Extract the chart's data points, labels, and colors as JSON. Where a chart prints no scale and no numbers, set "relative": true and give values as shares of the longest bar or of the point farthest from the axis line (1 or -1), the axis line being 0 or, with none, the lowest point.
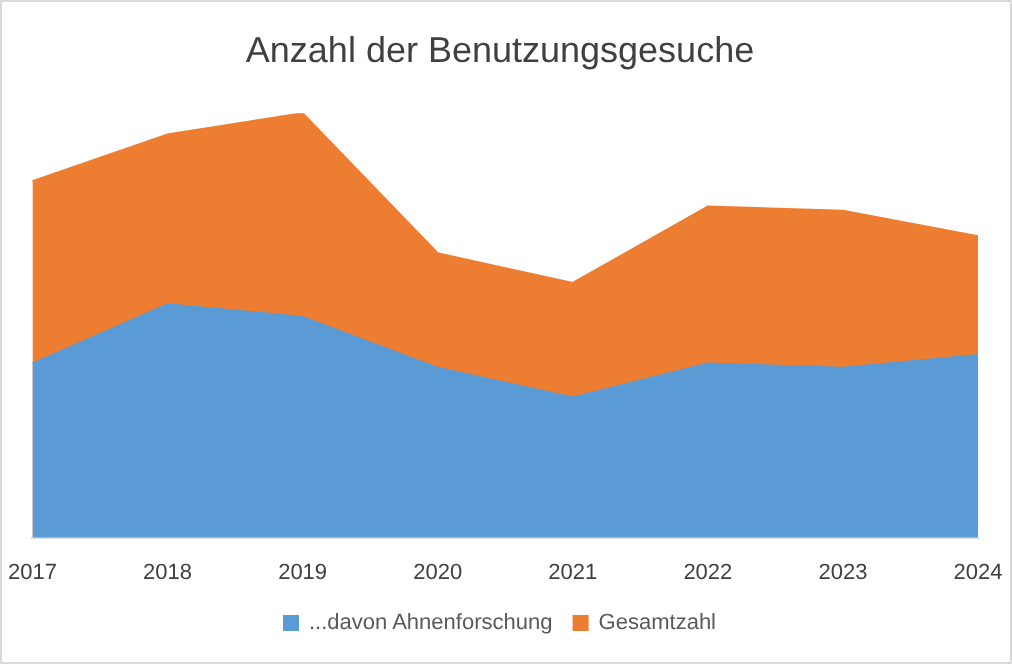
{
  "chart_data": {
    "type": "area",
    "title": "Anzahl der Benutzungsgesuche",
    "relative": true,
    "categories": [
      "2017",
      "2018",
      "2019",
      "2020",
      "2021",
      "2022",
      "2023",
      "2024"
    ],
    "series": [
      {
        "name": "...davon Ahnenforschung",
        "color": "#5b9bd5",
        "values": [
          0.41,
          0.55,
          0.52,
          0.4,
          0.33,
          0.41,
          0.4,
          0.43
        ]
      },
      {
        "name": "Gesamtzahl",
        "color": "#ed7d31",
        "values": [
          0.84,
          0.95,
          1,
          0.67,
          0.6,
          0.78,
          0.77,
          0.71
        ]
      }
    ],
    "legend": "bottom"
  }
}
